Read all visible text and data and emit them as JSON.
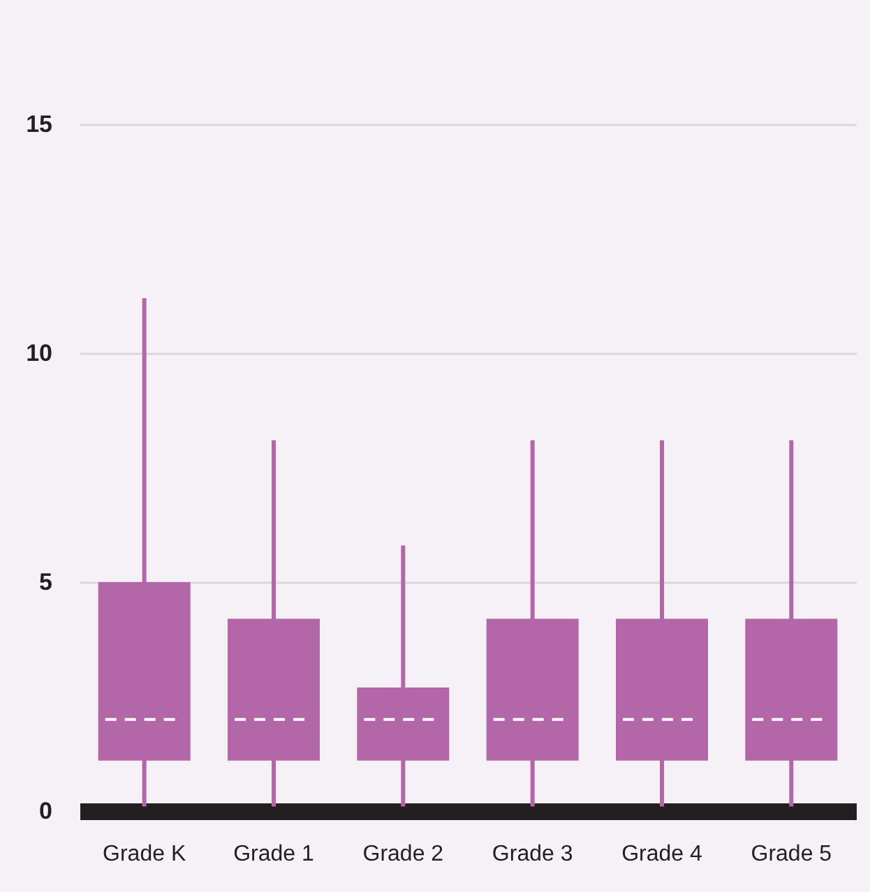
{
  "chart_data": {
    "type": "box",
    "categories": [
      "Grade K",
      "Grade 1",
      "Grade 2",
      "Grade 3",
      "Grade 4",
      "Grade 5"
    ],
    "color": "#b366a8",
    "boxes": [
      {
        "low": 0.1,
        "q1": 1.1,
        "median": 2,
        "q3": 5,
        "high": 11.2
      },
      {
        "low": 0.1,
        "q1": 1.1,
        "median": 2,
        "q3": 4.2,
        "high": 8.1
      },
      {
        "low": 0.1,
        "q1": 1.1,
        "median": 2,
        "q3": 2.7,
        "high": 5.8
      },
      {
        "low": 0.1,
        "q1": 1.1,
        "median": 2,
        "q3": 4.2,
        "high": 8.1
      },
      {
        "low": 0.1,
        "q1": 1.1,
        "median": 2,
        "q3": 4.2,
        "high": 8.1
      },
      {
        "low": 0.1,
        "q1": 1.1,
        "median": 2,
        "q3": 4.2,
        "high": 8.1
      }
    ],
    "ylim": [
      0,
      15
    ],
    "yticks": [
      0,
      5,
      10,
      15
    ],
    "grid": "y"
  }
}
